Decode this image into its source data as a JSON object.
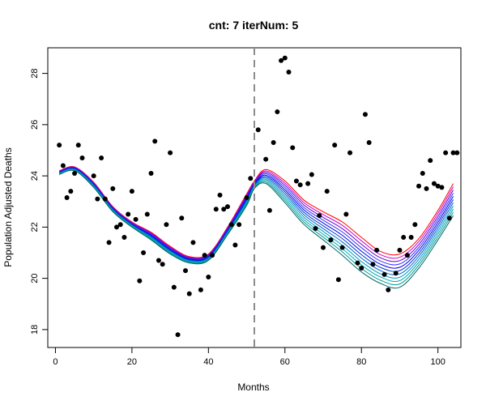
{
  "chart_data": {
    "type": "scatter",
    "title": "cnt: 7 iterNum: 5",
    "xlabel": "Months",
    "ylabel": "Population Adjusted Deaths",
    "xlim": [
      -2,
      106
    ],
    "ylim": [
      17.3,
      29.0
    ],
    "xticks": [
      0,
      20,
      40,
      60,
      80,
      100
    ],
    "yticks": [
      18,
      20,
      22,
      24,
      26,
      28
    ],
    "grid": false,
    "legend": "none",
    "vline": {
      "x": 52,
      "style": "dashed",
      "color": "#8c8c8c"
    },
    "points": [
      [
        1,
        25.2
      ],
      [
        2,
        24.4
      ],
      [
        3,
        23.15
      ],
      [
        4,
        23.4
      ],
      [
        5,
        24.1
      ],
      [
        6,
        25.2
      ],
      [
        7,
        24.7
      ],
      [
        10,
        24.0
      ],
      [
        11,
        23.1
      ],
      [
        12,
        24.7
      ],
      [
        13,
        23.1
      ],
      [
        14,
        21.4
      ],
      [
        15,
        23.5
      ],
      [
        16,
        22.0
      ],
      [
        17,
        22.1
      ],
      [
        18,
        21.6
      ],
      [
        19,
        22.5
      ],
      [
        20,
        23.4
      ],
      [
        21,
        22.3
      ],
      [
        22,
        19.9
      ],
      [
        23,
        21.0
      ],
      [
        24,
        22.5
      ],
      [
        25,
        24.1
      ],
      [
        26,
        25.35
      ],
      [
        27,
        20.7
      ],
      [
        28,
        20.55
      ],
      [
        29,
        22.1
      ],
      [
        30,
        24.9
      ],
      [
        31,
        19.65
      ],
      [
        32,
        17.8
      ],
      [
        33,
        22.35
      ],
      [
        34,
        20.3
      ],
      [
        35,
        19.4
      ],
      [
        36,
        21.4
      ],
      [
        38,
        19.55
      ],
      [
        39,
        20.9
      ],
      [
        40,
        20.05
      ],
      [
        41,
        20.9
      ],
      [
        42,
        22.7
      ],
      [
        43,
        23.25
      ],
      [
        44,
        22.7
      ],
      [
        45,
        22.8
      ],
      [
        46,
        22.1
      ],
      [
        47,
        21.3
      ],
      [
        48,
        22.1
      ],
      [
        50,
        23.15
      ],
      [
        51,
        23.9
      ],
      [
        53,
        25.8
      ],
      [
        55,
        24.65
      ],
      [
        56,
        22.65
      ],
      [
        57,
        25.3
      ],
      [
        58,
        26.5
      ],
      [
        59,
        28.5
      ],
      [
        60,
        28.6
      ],
      [
        61,
        28.05
      ],
      [
        62,
        25.1
      ],
      [
        63,
        23.8
      ],
      [
        64,
        23.65
      ],
      [
        66,
        23.7
      ],
      [
        67,
        24.05
      ],
      [
        68,
        21.95
      ],
      [
        69,
        22.45
      ],
      [
        70,
        21.2
      ],
      [
        71,
        23.4
      ],
      [
        72,
        21.5
      ],
      [
        73,
        25.2
      ],
      [
        74,
        19.95
      ],
      [
        75,
        21.2
      ],
      [
        76,
        22.5
      ],
      [
        77,
        24.9
      ],
      [
        79,
        20.6
      ],
      [
        80,
        20.4
      ],
      [
        81,
        26.4
      ],
      [
        82,
        25.3
      ],
      [
        83,
        20.55
      ],
      [
        84,
        21.1
      ],
      [
        86,
        20.15
      ],
      [
        87,
        19.55
      ],
      [
        89,
        20.2
      ],
      [
        90,
        21.1
      ],
      [
        91,
        21.6
      ],
      [
        92,
        20.9
      ],
      [
        93,
        21.6
      ],
      [
        94,
        22.1
      ],
      [
        95,
        23.6
      ],
      [
        96,
        24.1
      ],
      [
        97,
        23.5
      ],
      [
        98,
        24.6
      ],
      [
        99,
        23.7
      ],
      [
        100,
        23.6
      ],
      [
        101,
        23.55
      ],
      [
        102,
        24.9
      ],
      [
        103,
        22.35
      ],
      [
        104,
        24.9
      ],
      [
        105,
        24.9
      ]
    ],
    "curve_band": {
      "x": [
        1,
        5,
        10,
        15,
        20,
        25,
        30,
        35,
        40,
        45,
        50,
        52,
        55,
        60,
        65,
        70,
        75,
        80,
        85,
        90,
        95,
        100,
        104
      ],
      "upper": [
        24.2,
        24.35,
        23.75,
        22.8,
        22.2,
        21.8,
        21.25,
        20.85,
        20.95,
        22.0,
        23.3,
        23.8,
        24.25,
        23.8,
        23.05,
        22.6,
        22.2,
        21.6,
        21.05,
        20.95,
        21.55,
        22.65,
        23.7
      ],
      "lower": [
        24.05,
        24.2,
        23.55,
        22.6,
        22.0,
        21.5,
        20.95,
        20.6,
        20.7,
        21.7,
        22.85,
        23.5,
        23.7,
        22.95,
        22.1,
        21.5,
        20.9,
        20.25,
        19.8,
        19.65,
        20.4,
        21.5,
        22.45
      ]
    },
    "curve_colors": [
      "#ff0000",
      "#cc00cc",
      "#6600cc",
      "#3333ff",
      "#0000ee",
      "#0033cc",
      "#0066cc",
      "#0099cc",
      "#00aaaa",
      "#009999",
      "#006666"
    ]
  }
}
